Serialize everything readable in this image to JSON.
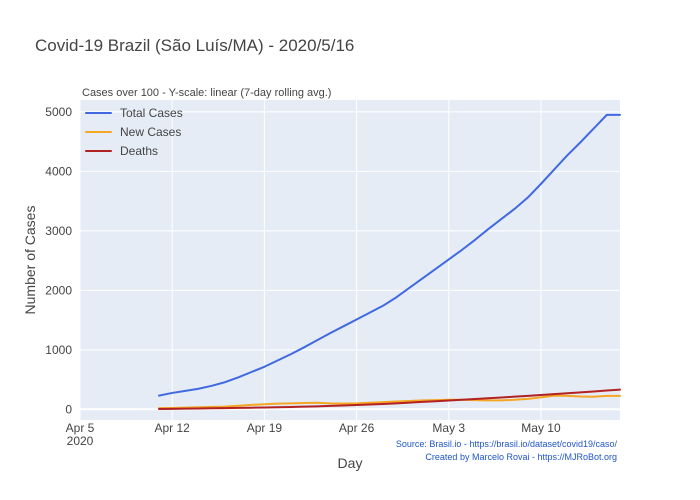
{
  "chart_data": {
    "type": "line",
    "title": "Covid-19 Brazil (São Luís/MA) - 2020/5/16",
    "subtitle": "Cases over 100 - Y-scale: linear (7-day rolling avg.)",
    "xlabel": "Day",
    "ylabel": "Number of Cases",
    "x_tick_labels": [
      "Apr 5\n2020",
      "Apr 12",
      "Apr 19",
      "Apr 26",
      "May 3",
      "May 10"
    ],
    "x_tick_dates": [
      "2020-04-05",
      "2020-04-12",
      "2020-04-19",
      "2020-04-26",
      "2020-05-03",
      "2020-05-10"
    ],
    "y_ticks": [
      0,
      1000,
      2000,
      3000,
      4000,
      5000
    ],
    "xlim": [
      "2020-04-05",
      "2020-05-16"
    ],
    "ylim": [
      -180,
      5200
    ],
    "grid": true,
    "legend_placement": "top-left",
    "dates": [
      "2020-04-11",
      "2020-04-12",
      "2020-04-13",
      "2020-04-14",
      "2020-04-15",
      "2020-04-16",
      "2020-04-17",
      "2020-04-18",
      "2020-04-19",
      "2020-04-20",
      "2020-04-21",
      "2020-04-22",
      "2020-04-23",
      "2020-04-24",
      "2020-04-25",
      "2020-04-26",
      "2020-04-27",
      "2020-04-28",
      "2020-04-29",
      "2020-04-30",
      "2020-05-01",
      "2020-05-02",
      "2020-05-03",
      "2020-05-04",
      "2020-05-05",
      "2020-05-06",
      "2020-05-07",
      "2020-05-08",
      "2020-05-09",
      "2020-05-10",
      "2020-05-11",
      "2020-05-12",
      "2020-05-13",
      "2020-05-14",
      "2020-05-15",
      "2020-05-16"
    ],
    "series": [
      {
        "name": "Total Cases",
        "color": "#4169e1",
        "values": [
          230,
          275,
          310,
          345,
          395,
          455,
          535,
          625,
          715,
          820,
          925,
          1040,
          1160,
          1280,
          1395,
          1510,
          1625,
          1740,
          1880,
          2040,
          2200,
          2360,
          2520,
          2680,
          2850,
          3030,
          3200,
          3370,
          3560,
          3790,
          4030,
          4270,
          4490,
          4720,
          4950,
          4950
        ]
      },
      {
        "name": "New Cases",
        "color": "#f5a623",
        "values": [
          20,
          22,
          28,
          35,
          40,
          45,
          60,
          75,
          85,
          95,
          100,
          105,
          110,
          100,
          95,
          100,
          110,
          120,
          130,
          140,
          150,
          155,
          160,
          160,
          155,
          150,
          150,
          160,
          175,
          200,
          230,
          225,
          215,
          210,
          225,
          225
        ]
      },
      {
        "name": "Deaths",
        "color": "#b22222",
        "values": [
          5,
          8,
          11,
          14,
          17,
          20,
          23,
          27,
          31,
          35,
          39,
          44,
          50,
          57,
          64,
          72,
          80,
          90,
          100,
          112,
          124,
          136,
          148,
          160,
          173,
          186,
          199,
          212,
          225,
          240,
          255,
          270,
          285,
          300,
          315,
          330
        ]
      }
    ]
  },
  "source_lines": [
    "Source: Brasil.io - https://brasil.io/dataset/covid19/caso/",
    "Created by Marcelo Rovai - https://MJRoBot.org"
  ]
}
